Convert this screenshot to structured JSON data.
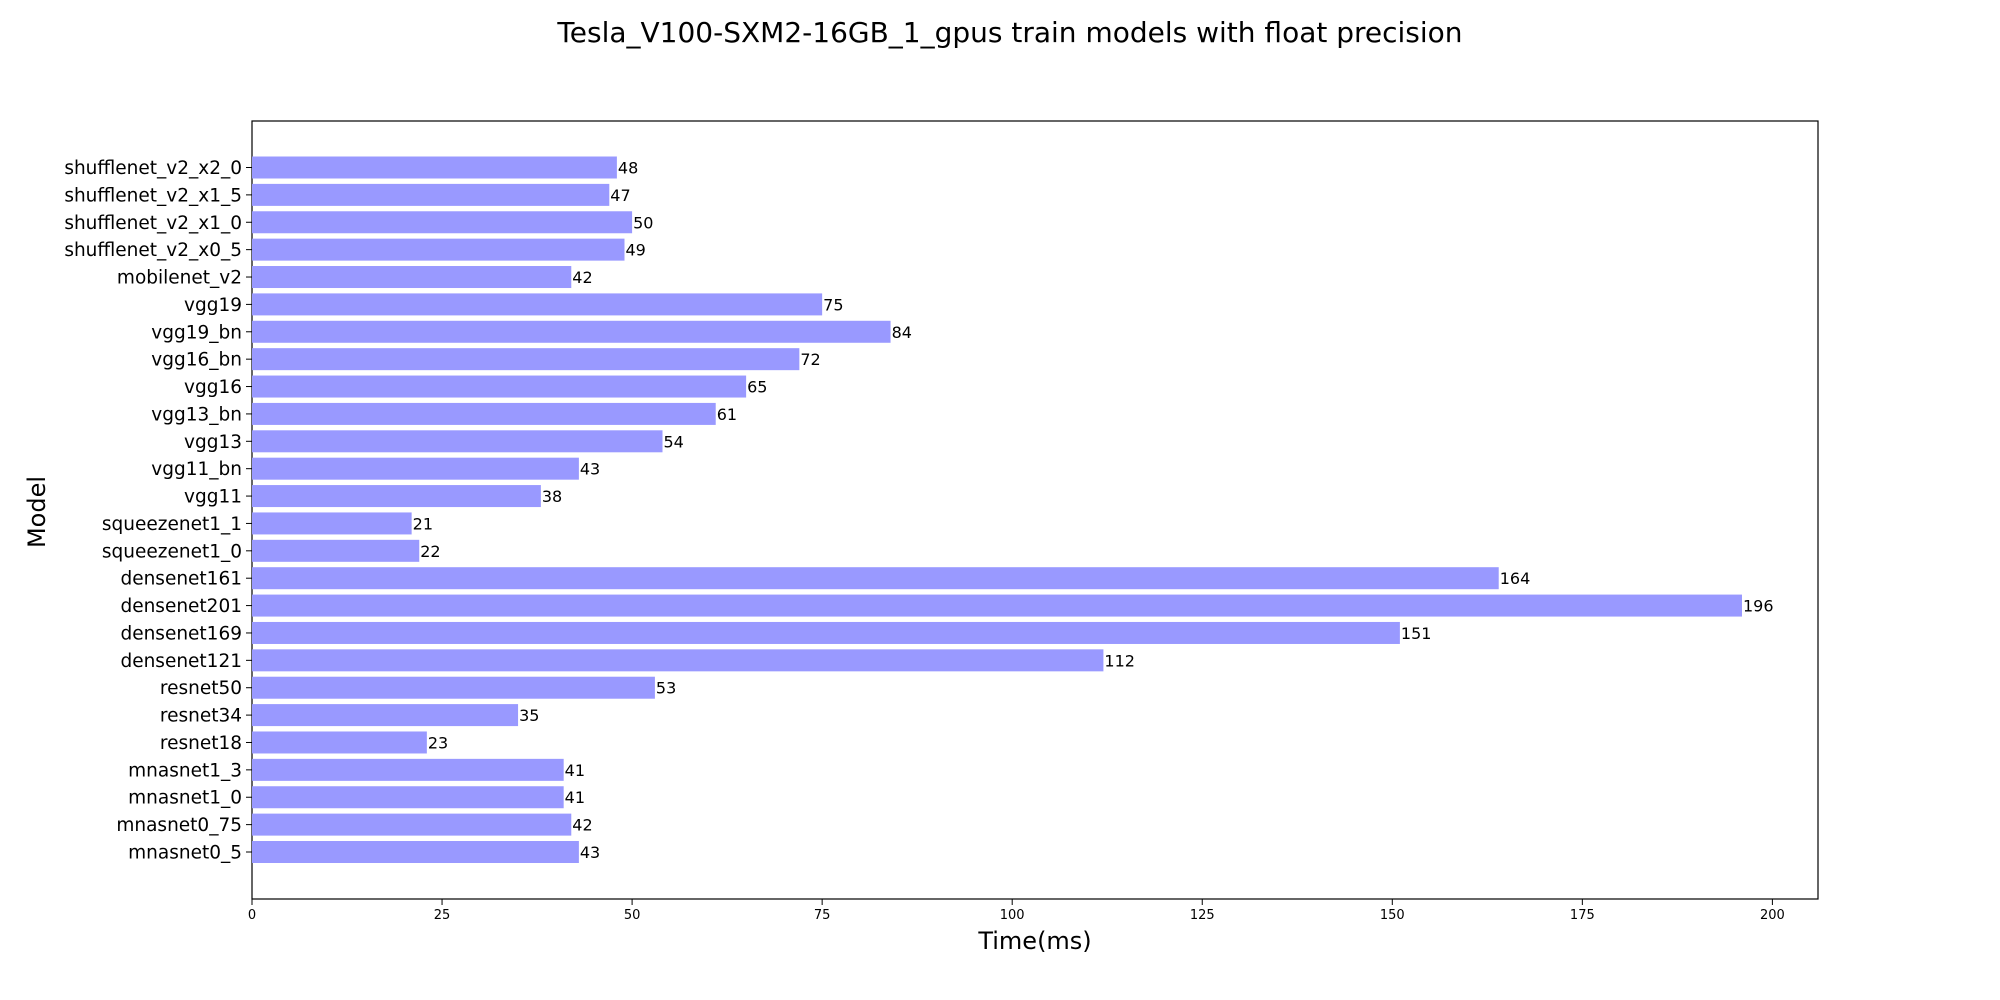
{
  "chart_data": {
    "type": "bar",
    "orientation": "horizontal",
    "title": "Tesla_V100-SXM2-16GB_1_gpus train models with float precision",
    "xlabel": "Time(ms)",
    "ylabel": "Model",
    "xlim": [
      0,
      206
    ],
    "xticks": [
      0,
      25,
      50,
      75,
      100,
      125,
      150,
      175,
      200
    ],
    "grid": false,
    "bar_color": "#9999ff",
    "categories": [
      "shufflenet_v2_x2_0",
      "shufflenet_v2_x1_5",
      "shufflenet_v2_x1_0",
      "shufflenet_v2_x0_5",
      "mobilenet_v2",
      "vgg19",
      "vgg19_bn",
      "vgg16_bn",
      "vgg16",
      "vgg13_bn",
      "vgg13",
      "vgg11_bn",
      "vgg11",
      "squeezenet1_1",
      "squeezenet1_0",
      "densenet161",
      "densenet201",
      "densenet169",
      "densenet121",
      "resnet50",
      "resnet34",
      "resnet18",
      "mnasnet1_3",
      "mnasnet1_0",
      "mnasnet0_75",
      "mnasnet0_5"
    ],
    "values": [
      48,
      47,
      50,
      49,
      42,
      75,
      84,
      72,
      65,
      61,
      54,
      43,
      38,
      21,
      22,
      164,
      196,
      151,
      112,
      53,
      35,
      23,
      41,
      41,
      42,
      43
    ]
  }
}
